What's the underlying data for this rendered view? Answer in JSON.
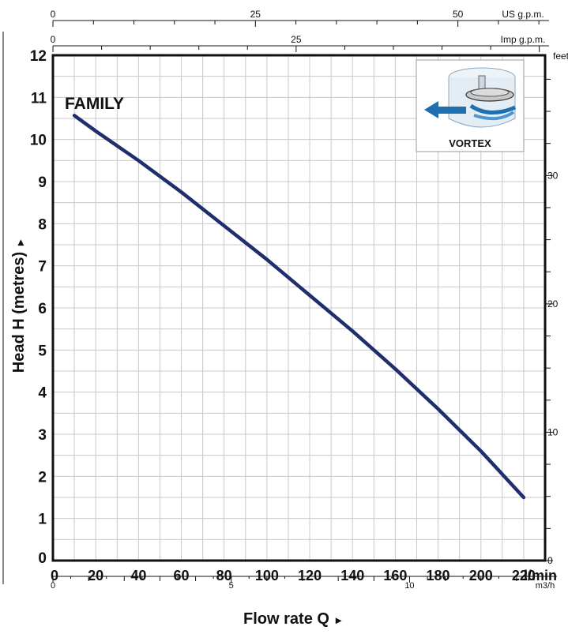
{
  "chart_data": {
    "type": "line",
    "title": "",
    "series": [
      {
        "name": "FAMILY",
        "points": [
          [
            10,
            10.57
          ],
          [
            20,
            10.2
          ],
          [
            40,
            9.5
          ],
          [
            60,
            8.75
          ],
          [
            80,
            7.95
          ],
          [
            100,
            7.15
          ],
          [
            120,
            6.3
          ],
          [
            140,
            5.45
          ],
          [
            160,
            4.55
          ],
          [
            180,
            3.6
          ],
          [
            200,
            2.6
          ],
          [
            220,
            1.5
          ]
        ],
        "color": "#1f2f6e"
      }
    ],
    "x_axis": {
      "label": "Flow rate Q",
      "arrow": "▸",
      "unit": "l/min",
      "range": [
        0,
        230
      ],
      "ticks": [
        "0",
        "20",
        "40",
        "60",
        "80",
        "100",
        "120",
        "140",
        "160",
        "180",
        "200",
        "220"
      ]
    },
    "y_axis": {
      "label": "Head H (metres)",
      "arrow": "▸",
      "range": [
        0,
        12
      ],
      "ticks": [
        "0",
        "1",
        "2",
        "3",
        "4",
        "5",
        "6",
        "7",
        "8",
        "9",
        "10",
        "11",
        "12"
      ]
    },
    "secondary_axes": {
      "us_gpm": {
        "label": "US g.p.m.",
        "ticks": [
          "0",
          "25",
          "50"
        ],
        "values": [
          0,
          25,
          50
        ]
      },
      "imp_gpm": {
        "label": "Imp g.p.m.",
        "ticks": [
          "0",
          "25"
        ],
        "values": [
          0,
          25
        ]
      },
      "m3h": {
        "label": "m3/h",
        "ticks": [
          "0",
          "5",
          "10"
        ],
        "values": [
          0,
          5,
          10
        ]
      },
      "feet": {
        "label": "feet",
        "ticks": [
          "0",
          "10",
          "20",
          "30"
        ],
        "values": [
          0,
          10,
          20,
          30
        ]
      }
    },
    "grid": true
  },
  "inset": {
    "label": "VORTEX"
  },
  "colors": {
    "curve": "#1f2f6e",
    "grid": "#c9c9c9",
    "axis": "#111111",
    "inset_accent": "#1e6fb2"
  }
}
